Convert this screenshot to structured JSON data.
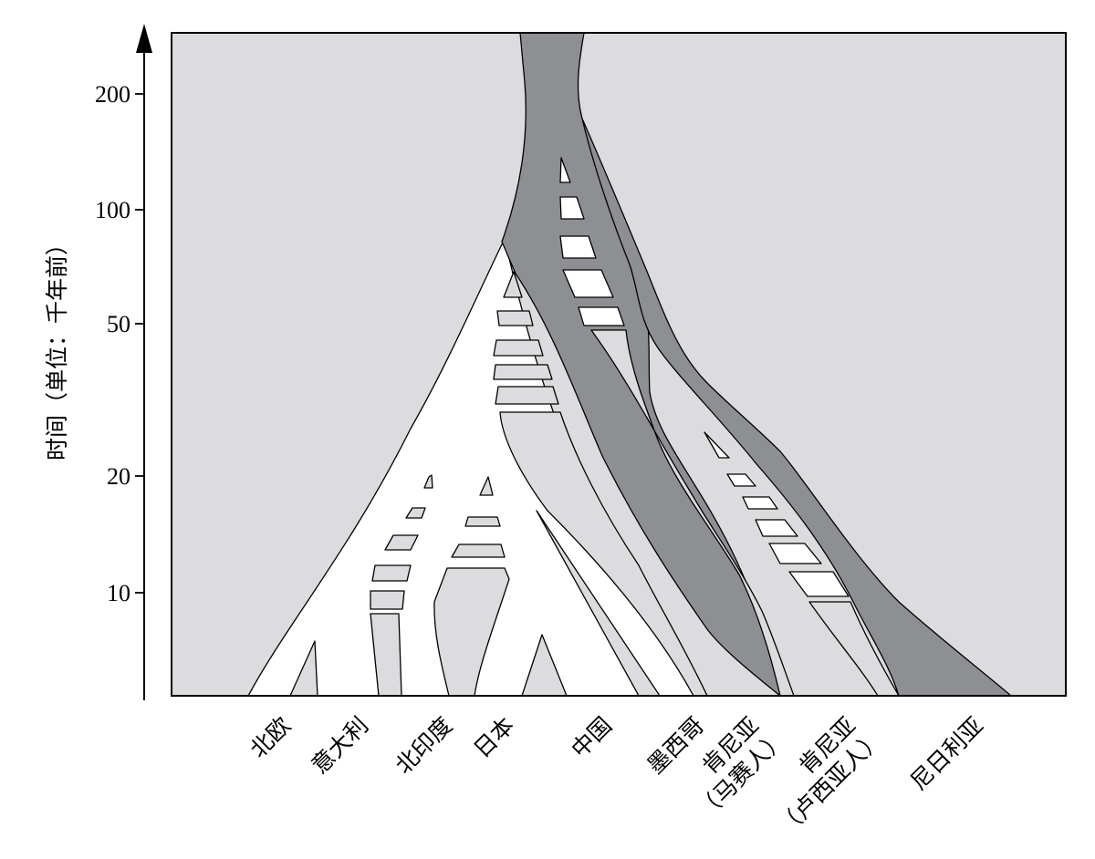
{
  "y_axis": {
    "label": "时间（单位：千年前）",
    "ticks": [
      "200",
      "100",
      "50",
      "20",
      "10"
    ]
  },
  "populations": [
    {
      "name": "北欧"
    },
    {
      "name": "意大利"
    },
    {
      "name": "北印度"
    },
    {
      "name": "日本"
    },
    {
      "name": "中国"
    },
    {
      "name": "墨西哥"
    },
    {
      "name": "肯尼亚",
      "line2": "（马赛人）"
    },
    {
      "name": "肯尼亚",
      "line2": "（卢西亚人）"
    },
    {
      "name": "尼日利亚"
    }
  ],
  "colors": {
    "background": "#dcdcde",
    "out_of_africa": "#ffffff",
    "african_lineage": "#8e8f92",
    "pulse_light": "#dcdcde",
    "outline": "#000000"
  }
}
